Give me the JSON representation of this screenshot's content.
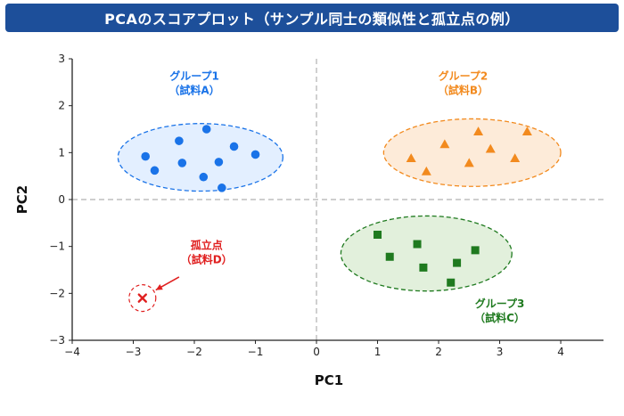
{
  "chart_data": {
    "type": "scatter",
    "title": "PCAのスコアプロット（サンプル同士の類似性と孤立点の例）",
    "xlabel": "PC1",
    "ylabel": "PC2",
    "xlim": [
      -4,
      4.7
    ],
    "ylim": [
      -3,
      3
    ],
    "x_ticks": [
      -4,
      -3,
      -2,
      -1,
      0,
      1,
      2,
      3,
      4
    ],
    "y_ticks": [
      -3,
      -2,
      -1,
      0,
      1,
      2,
      3
    ],
    "x_tick_labels": [
      "−4",
      "−3",
      "−2",
      "−1",
      "0",
      "1",
      "2",
      "3",
      "4"
    ],
    "y_tick_labels": [
      "−3",
      "−2",
      "−1",
      "0",
      "1",
      "2",
      "3"
    ],
    "grid": false,
    "reference_lines": {
      "x": 0,
      "y": 0,
      "style": "dashed"
    },
    "series": [
      {
        "label_line1": "グループ1",
        "label_line2": "（試料A）",
        "marker": "circle",
        "color": "#1a73e8",
        "fill": "#e3efff",
        "x": [
          -2.8,
          -2.65,
          -2.25,
          -2.2,
          -1.8,
          -1.85,
          -1.6,
          -1.55,
          -1.35,
          -1.0
        ],
        "y": [
          0.92,
          0.62,
          1.25,
          0.78,
          1.5,
          0.48,
          0.8,
          0.25,
          1.13,
          0.96
        ],
        "ellipse": {
          "cx": -1.9,
          "cy": 0.9,
          "rx": 1.35,
          "ry": 0.72
        }
      },
      {
        "label_line1": "グループ2",
        "label_line2": "（試料B）",
        "marker": "triangle",
        "color": "#f28a1e",
        "fill": "#fdebd9",
        "x": [
          1.55,
          1.8,
          2.1,
          2.5,
          2.65,
          2.85,
          3.25,
          3.45
        ],
        "y": [
          0.88,
          0.6,
          1.18,
          0.78,
          1.45,
          1.08,
          0.88,
          1.45
        ],
        "ellipse": {
          "cx": 2.55,
          "cy": 1.0,
          "rx": 1.45,
          "ry": 0.72
        }
      },
      {
        "label_line1": "グループ3",
        "label_line2": "（試料C）",
        "marker": "square",
        "color": "#1f7a1f",
        "fill": "#e2f0dc",
        "x": [
          1.0,
          1.2,
          1.65,
          1.75,
          2.2,
          2.3,
          2.6
        ],
        "y": [
          -0.75,
          -1.22,
          -0.95,
          -1.45,
          -1.77,
          -1.35,
          -1.08
        ],
        "ellipse": {
          "cx": 1.8,
          "cy": -1.15,
          "rx": 1.4,
          "ry": 0.8
        }
      },
      {
        "label_line1": "孤立点",
        "label_line2": "（試料D）",
        "marker": "x",
        "color": "#e02020",
        "x": [
          -2.85
        ],
        "y": [
          -2.1
        ]
      }
    ]
  }
}
